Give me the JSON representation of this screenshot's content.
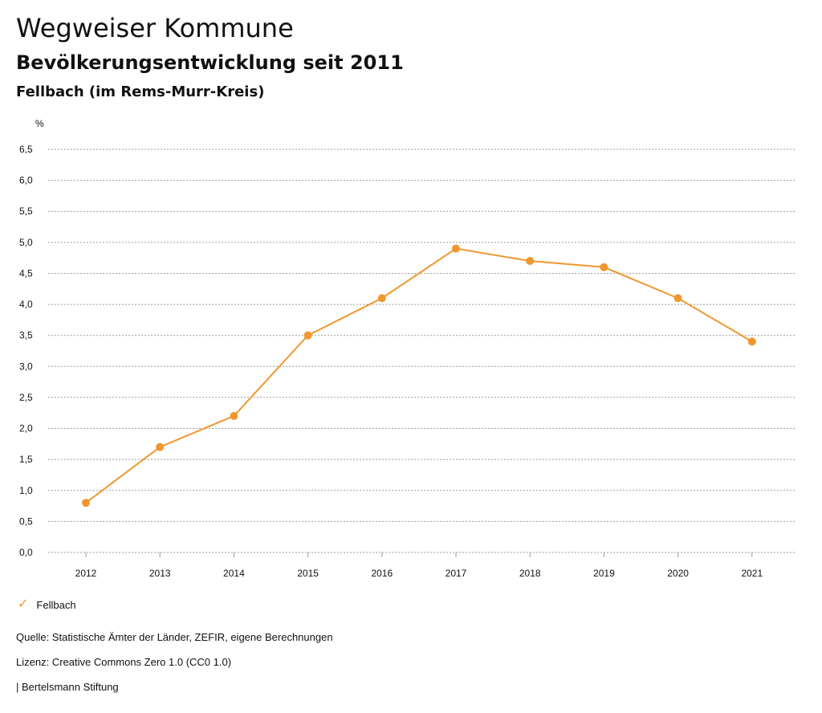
{
  "header": {
    "title": "Wegweiser Kommune",
    "subtitle": "Bevölkerungsentwicklung seit 2011",
    "region": "Fellbach (im Rems-Murr-Kreis)"
  },
  "chart_data": {
    "type": "line",
    "unit_label": "%",
    "x": [
      "2012",
      "2013",
      "2014",
      "2015",
      "2016",
      "2017",
      "2018",
      "2019",
      "2020",
      "2021"
    ],
    "series": [
      {
        "name": "Fellbach",
        "color": "#F0962E",
        "values": [
          0.8,
          1.7,
          2.2,
          3.5,
          4.1,
          4.9,
          4.7,
          4.6,
          4.1,
          3.4
        ]
      }
    ],
    "yticks": [
      "0,0",
      "0,5",
      "1,0",
      "1,5",
      "2,0",
      "2,5",
      "3,0",
      "3,5",
      "4,0",
      "4,5",
      "5,0",
      "5,5",
      "6,0",
      "6,5"
    ],
    "ylim": [
      0,
      6.5
    ],
    "grid": true,
    "legend_position": "bottom-left"
  },
  "legend": {
    "icon": "check-icon",
    "label": "Fellbach"
  },
  "footer": {
    "source": "Quelle: Statistische Ämter der Länder, ZEFIR, eigene Berechnungen",
    "license": "Lizenz: Creative Commons Zero 1.0 (CC0 1.0)",
    "publisher": "| Bertelsmann Stiftung"
  }
}
